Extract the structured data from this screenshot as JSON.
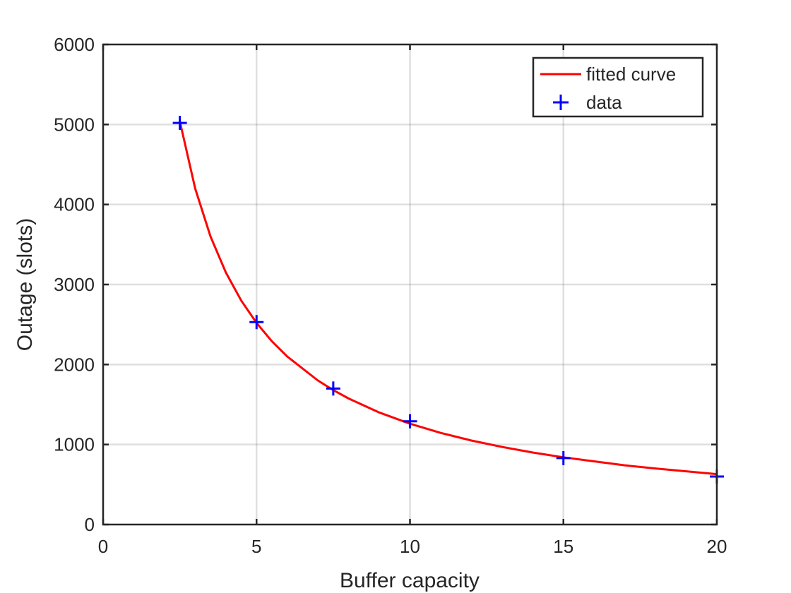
{
  "chart_data": {
    "type": "line",
    "title": "",
    "xlabel": "Buffer capacity",
    "ylabel": "Outage (slots)",
    "xlim": [
      0,
      20
    ],
    "ylim": [
      0,
      6000
    ],
    "xticks": [
      0,
      5,
      10,
      15,
      20
    ],
    "yticks": [
      0,
      1000,
      2000,
      3000,
      4000,
      5000,
      6000
    ],
    "xtick_labels": [
      "0",
      "5",
      "10",
      "15",
      "20"
    ],
    "ytick_labels": [
      "0",
      "1000",
      "2000",
      "3000",
      "4000",
      "5000",
      "6000"
    ],
    "grid": true,
    "legend_position": "top-right",
    "series": [
      {
        "name": "fitted curve",
        "type": "line",
        "color": "#ff0000",
        "x": [
          2.5,
          3,
          3.5,
          4,
          4.5,
          5,
          5.5,
          6,
          7,
          7.5,
          8,
          9,
          10,
          11,
          12,
          13,
          14,
          15,
          16,
          17,
          18,
          19,
          20
        ],
        "y": [
          5040,
          4200,
          3600,
          3150,
          2800,
          2520,
          2290,
          2100,
          1800,
          1680,
          1575,
          1400,
          1260,
          1145,
          1050,
          970,
          900,
          840,
          790,
          740,
          700,
          665,
          630
        ]
      },
      {
        "name": "data",
        "type": "scatter",
        "marker": "+",
        "color": "#0000ff",
        "x": [
          2.5,
          5,
          7.5,
          10,
          15,
          20
        ],
        "y": [
          5020,
          2530,
          1700,
          1290,
          830,
          600
        ]
      }
    ]
  }
}
